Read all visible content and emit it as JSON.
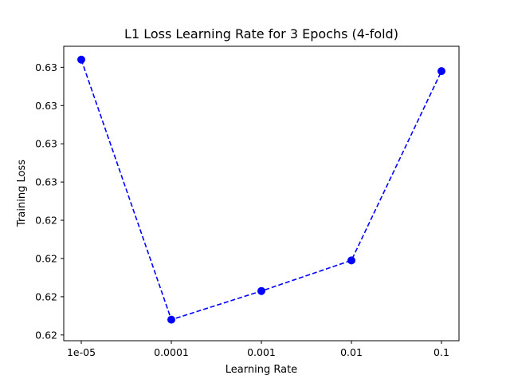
{
  "chart_data": {
    "type": "line",
    "title": "L1 Loss Learning Rate for 3 Epochs (4-fold)",
    "xlabel": "Learning Rate",
    "ylabel": "Training Loss",
    "x_scale": "log",
    "categories": [
      "1e-05",
      "0.0001",
      "0.001",
      "0.01",
      "0.1"
    ],
    "x": [
      1e-05,
      0.0001,
      0.001,
      0.01,
      0.1
    ],
    "series": [
      {
        "values": [
          0.6324,
          0.6188,
          0.6203,
          0.6219,
          0.6318
        ],
        "color": "#0000ff",
        "line_style": "dashed",
        "marker": "circle"
      }
    ],
    "y_ticks": [
      0.618,
      0.62,
      0.622,
      0.624,
      0.626,
      0.628,
      0.63,
      0.632
    ],
    "y_tick_labels": [
      "0.62",
      "0.62",
      "0.62",
      "0.62",
      "0.63",
      "0.63",
      "0.63",
      "0.63"
    ],
    "ylim": [
      0.6177,
      0.6331
    ],
    "grid": false,
    "legend": false
  }
}
